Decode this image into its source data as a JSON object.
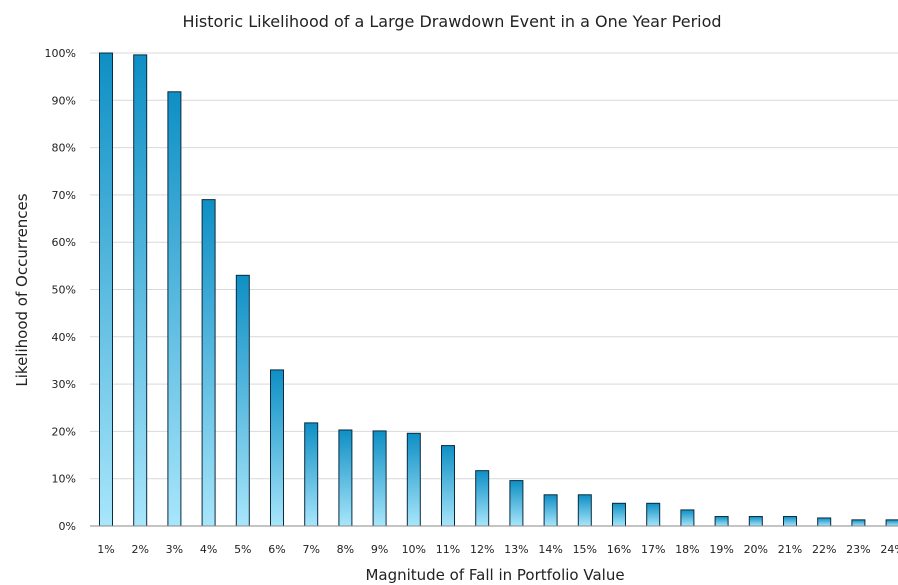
{
  "chart_data": {
    "type": "bar",
    "title": "Historic Likelihood of a Large Drawdown Event in a One Year Period",
    "xlabel": "Magnitude of Fall in Portfolio Value",
    "ylabel": "Likelihood of Occurrences",
    "categories": [
      "1%",
      "2%",
      "3%",
      "4%",
      "5%",
      "6%",
      "7%",
      "8%",
      "9%",
      "10%",
      "11%",
      "12%",
      "13%",
      "14%",
      "15%",
      "16%",
      "17%",
      "18%",
      "19%",
      "20%",
      "21%",
      "22%",
      "23%",
      "24%"
    ],
    "values": [
      100,
      99.6,
      91.8,
      69,
      53,
      33,
      21.8,
      20.3,
      20.1,
      19.6,
      17,
      11.7,
      9.6,
      6.6,
      6.6,
      4.8,
      4.8,
      3.4,
      2,
      2,
      2,
      1.7,
      1.3,
      1.3
    ],
    "yticks": [
      "0%",
      "10%",
      "20%",
      "30%",
      "40%",
      "50%",
      "60%",
      "70%",
      "80%",
      "90%",
      "100%"
    ],
    "ylim": [
      0,
      100
    ],
    "grid": true,
    "legend": "none",
    "colors": {
      "bar_top": "#0e8fc4",
      "bar_bottom": "#a8e6fb",
      "bar_outline": "#0b2a40"
    }
  }
}
